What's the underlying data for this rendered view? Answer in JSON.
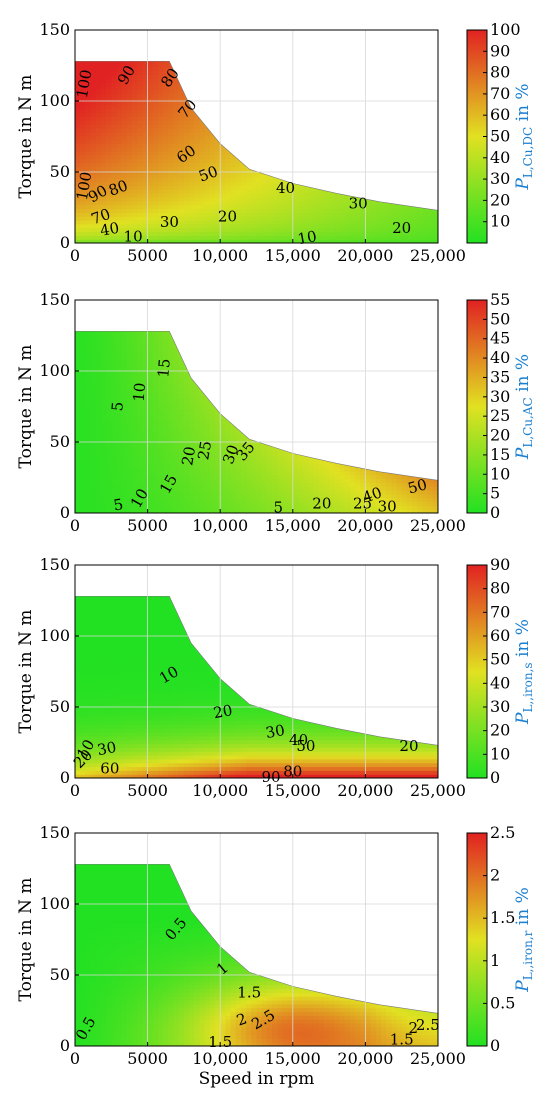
{
  "chart_data": [
    {
      "type": "contour",
      "xlabel": "",
      "ylabel": "Torque in N m",
      "xlim": [
        0,
        25000
      ],
      "ylim": [
        0,
        150
      ],
      "x_ticks": [
        "0",
        "5000",
        "10,000",
        "15,000",
        "20,000",
        "25,000"
      ],
      "y_ticks": [
        "0",
        "50",
        "100",
        "150"
      ],
      "grid": true,
      "colorbar": {
        "label_main": "P",
        "label_sub": "L,Cu,DC",
        "label_suffix": " in %",
        "range": [
          0,
          100
        ],
        "ticks": [
          "10",
          "20",
          "30",
          "40",
          "50",
          "60",
          "70",
          "80",
          "90",
          "100"
        ],
        "colors": [
          "#22e122",
          "#e1e122",
          "#e12222"
        ]
      },
      "torque_envelope": {
        "speed": [
          0,
          6500,
          8000,
          10000,
          12000,
          15000,
          18000,
          21000,
          25000
        ],
        "torque": [
          128,
          128,
          95,
          70,
          52,
          42,
          35,
          29,
          23
        ]
      },
      "contour_labels": [
        {
          "text": "100",
          "speed": 700,
          "torque": 112,
          "rotate": -80
        },
        {
          "text": "90",
          "speed": 3600,
          "torque": 118,
          "rotate": -60
        },
        {
          "text": "80",
          "speed": 6600,
          "torque": 116,
          "rotate": -55
        },
        {
          "text": "70",
          "speed": 7800,
          "torque": 94,
          "rotate": -50
        },
        {
          "text": "60",
          "speed": 7700,
          "torque": 62,
          "rotate": -35
        },
        {
          "text": "50",
          "speed": 9200,
          "torque": 48,
          "rotate": -20
        },
        {
          "text": "40",
          "speed": 14500,
          "torque": 38,
          "rotate": 0
        },
        {
          "text": "30",
          "speed": 19500,
          "torque": 27,
          "rotate": 0
        },
        {
          "text": "20",
          "speed": 22500,
          "torque": 10,
          "rotate": 0
        },
        {
          "text": "100",
          "speed": 700,
          "torque": 40,
          "rotate": -80
        },
        {
          "text": "90",
          "speed": 1600,
          "torque": 34,
          "rotate": -30
        },
        {
          "text": "80",
          "speed": 3000,
          "torque": 38,
          "rotate": -20
        },
        {
          "text": "70",
          "speed": 1800,
          "torque": 18,
          "rotate": -20
        },
        {
          "text": "40",
          "speed": 2400,
          "torque": 9,
          "rotate": -10
        },
        {
          "text": "30",
          "speed": 6500,
          "torque": 14,
          "rotate": 0
        },
        {
          "text": "20",
          "speed": 10500,
          "torque": 18,
          "rotate": 0
        },
        {
          "text": "10",
          "speed": 4000,
          "torque": 4,
          "rotate": 0
        },
        {
          "text": "10",
          "speed": 16000,
          "torque": 3,
          "rotate": -10
        }
      ]
    },
    {
      "type": "contour",
      "xlabel": "",
      "ylabel": "Torque in N m",
      "xlim": [
        0,
        25000
      ],
      "ylim": [
        0,
        150
      ],
      "x_ticks": [
        "0",
        "5000",
        "10,000",
        "15,000",
        "20,000",
        "25,000"
      ],
      "y_ticks": [
        "0",
        "50",
        "100",
        "150"
      ],
      "grid": true,
      "colorbar": {
        "label_main": "P",
        "label_sub": "L,Cu,AC",
        "label_suffix": " in %",
        "range": [
          0,
          55
        ],
        "ticks": [
          "0",
          "5",
          "10",
          "15",
          "20",
          "25",
          "30",
          "35",
          "40",
          "45",
          "50",
          "55"
        ],
        "colors": [
          "#22e122",
          "#e1e122",
          "#e12222"
        ]
      },
      "torque_envelope": {
        "speed": [
          0,
          6500,
          8000,
          10000,
          12000,
          15000,
          18000,
          21000,
          25000
        ],
        "torque": [
          128,
          128,
          95,
          70,
          52,
          42,
          35,
          29,
          23
        ]
      },
      "contour_labels": [
        {
          "text": "5",
          "speed": 3000,
          "torque": 75,
          "rotate": -85
        },
        {
          "text": "10",
          "speed": 4500,
          "torque": 85,
          "rotate": -85
        },
        {
          "text": "15",
          "speed": 6200,
          "torque": 102,
          "rotate": -85
        },
        {
          "text": "20",
          "speed": 7900,
          "torque": 40,
          "rotate": -80
        },
        {
          "text": "25",
          "speed": 9000,
          "torque": 44,
          "rotate": -80
        },
        {
          "text": "30",
          "speed": 10800,
          "torque": 41,
          "rotate": -70
        },
        {
          "text": "35",
          "speed": 11800,
          "torque": 43,
          "rotate": -50
        },
        {
          "text": "15",
          "speed": 6500,
          "torque": 20,
          "rotate": -60
        },
        {
          "text": "10",
          "speed": 4500,
          "torque": 10,
          "rotate": -60
        },
        {
          "text": "5",
          "speed": 3000,
          "torque": 5,
          "rotate": -10
        },
        {
          "text": "5",
          "speed": 14000,
          "torque": 3,
          "rotate": 0
        },
        {
          "text": "20",
          "speed": 17000,
          "torque": 6,
          "rotate": 0
        },
        {
          "text": "25",
          "speed": 19800,
          "torque": 6,
          "rotate": 0
        },
        {
          "text": "30",
          "speed": 21500,
          "torque": 4,
          "rotate": 0
        },
        {
          "text": "40",
          "speed": 20500,
          "torque": 12,
          "rotate": -20
        },
        {
          "text": "50",
          "speed": 23600,
          "torque": 18,
          "rotate": -15
        }
      ]
    },
    {
      "type": "contour",
      "xlabel": "",
      "ylabel": "Torque in N m",
      "xlim": [
        0,
        25000
      ],
      "ylim": [
        0,
        150
      ],
      "x_ticks": [
        "0",
        "5000",
        "10,000",
        "15,000",
        "20,000",
        "25,000"
      ],
      "y_ticks": [
        "0",
        "50",
        "100",
        "150"
      ],
      "grid": true,
      "colorbar": {
        "label_main": "P",
        "label_sub": "L,,iron,s",
        "label_suffix": " in %",
        "range": [
          0,
          90
        ],
        "ticks": [
          "0",
          "10",
          "20",
          "30",
          "40",
          "50",
          "60",
          "70",
          "80",
          "90"
        ],
        "colors": [
          "#22e122",
          "#e1e122",
          "#e12222"
        ]
      },
      "torque_envelope": {
        "speed": [
          0,
          6500,
          8000,
          10000,
          12000,
          15000,
          18000,
          21000,
          25000
        ],
        "torque": [
          128,
          128,
          95,
          70,
          52,
          42,
          35,
          29,
          23
        ]
      },
      "contour_labels": [
        {
          "text": "10",
          "speed": 6500,
          "torque": 72,
          "rotate": -30
        },
        {
          "text": "20",
          "speed": 10200,
          "torque": 46,
          "rotate": -10
        },
        {
          "text": "30",
          "speed": 13800,
          "torque": 32,
          "rotate": -10
        },
        {
          "text": "40",
          "speed": 15400,
          "torque": 26,
          "rotate": 0
        },
        {
          "text": "50",
          "speed": 15900,
          "torque": 22,
          "rotate": 0
        },
        {
          "text": "20",
          "speed": 23000,
          "torque": 22,
          "rotate": 0
        },
        {
          "text": "10",
          "speed": 800,
          "torque": 20,
          "rotate": -60
        },
        {
          "text": "20",
          "speed": 600,
          "torque": 13,
          "rotate": -45
        },
        {
          "text": "30",
          "speed": 2200,
          "torque": 20,
          "rotate": -10
        },
        {
          "text": "60",
          "speed": 2400,
          "torque": 6,
          "rotate": 0
        },
        {
          "text": "80",
          "speed": 15000,
          "torque": 4,
          "rotate": 0
        },
        {
          "text": "90",
          "speed": 13500,
          "torque": 0,
          "rotate": 0
        }
      ]
    },
    {
      "type": "contour",
      "xlabel": "Speed in rpm",
      "ylabel": "Torque in N m",
      "xlim": [
        0,
        25000
      ],
      "ylim": [
        0,
        150
      ],
      "x_ticks": [
        "0",
        "5000",
        "10,000",
        "15,000",
        "20,000",
        "25,000"
      ],
      "y_ticks": [
        "0",
        "50",
        "100",
        "150"
      ],
      "grid": true,
      "colorbar": {
        "label_main": "P",
        "label_sub": "L,,iron,r",
        "label_suffix": " in %",
        "range": [
          0,
          2.5
        ],
        "ticks": [
          "0",
          "0.5",
          "1",
          "1.5",
          "2",
          "2.5"
        ],
        "colors": [
          "#22e122",
          "#e1e122",
          "#e12222"
        ]
      },
      "torque_envelope": {
        "speed": [
          0,
          6500,
          8000,
          10000,
          12000,
          15000,
          18000,
          21000,
          25000
        ],
        "torque": [
          128,
          128,
          95,
          70,
          52,
          42,
          35,
          29,
          23
        ]
      },
      "contour_labels": [
        {
          "text": "0.5",
          "speed": 7000,
          "torque": 82,
          "rotate": -50
        },
        {
          "text": "1",
          "speed": 10200,
          "torque": 54,
          "rotate": -40
        },
        {
          "text": "1.5",
          "speed": 12000,
          "torque": 37,
          "rotate": 0
        },
        {
          "text": "2",
          "speed": 11500,
          "torque": 18,
          "rotate": -20
        },
        {
          "text": "2.5",
          "speed": 13000,
          "torque": 18,
          "rotate": -30
        },
        {
          "text": "0.5",
          "speed": 800,
          "torque": 12,
          "rotate": -60
        },
        {
          "text": "1.5",
          "speed": 10000,
          "torque": 2,
          "rotate": 0
        },
        {
          "text": "1.5",
          "speed": 22500,
          "torque": 4,
          "rotate": 0
        },
        {
          "text": "2",
          "speed": 23300,
          "torque": 12,
          "rotate": 0
        },
        {
          "text": "2.5",
          "speed": 24300,
          "torque": 14,
          "rotate": 0
        }
      ]
    }
  ]
}
